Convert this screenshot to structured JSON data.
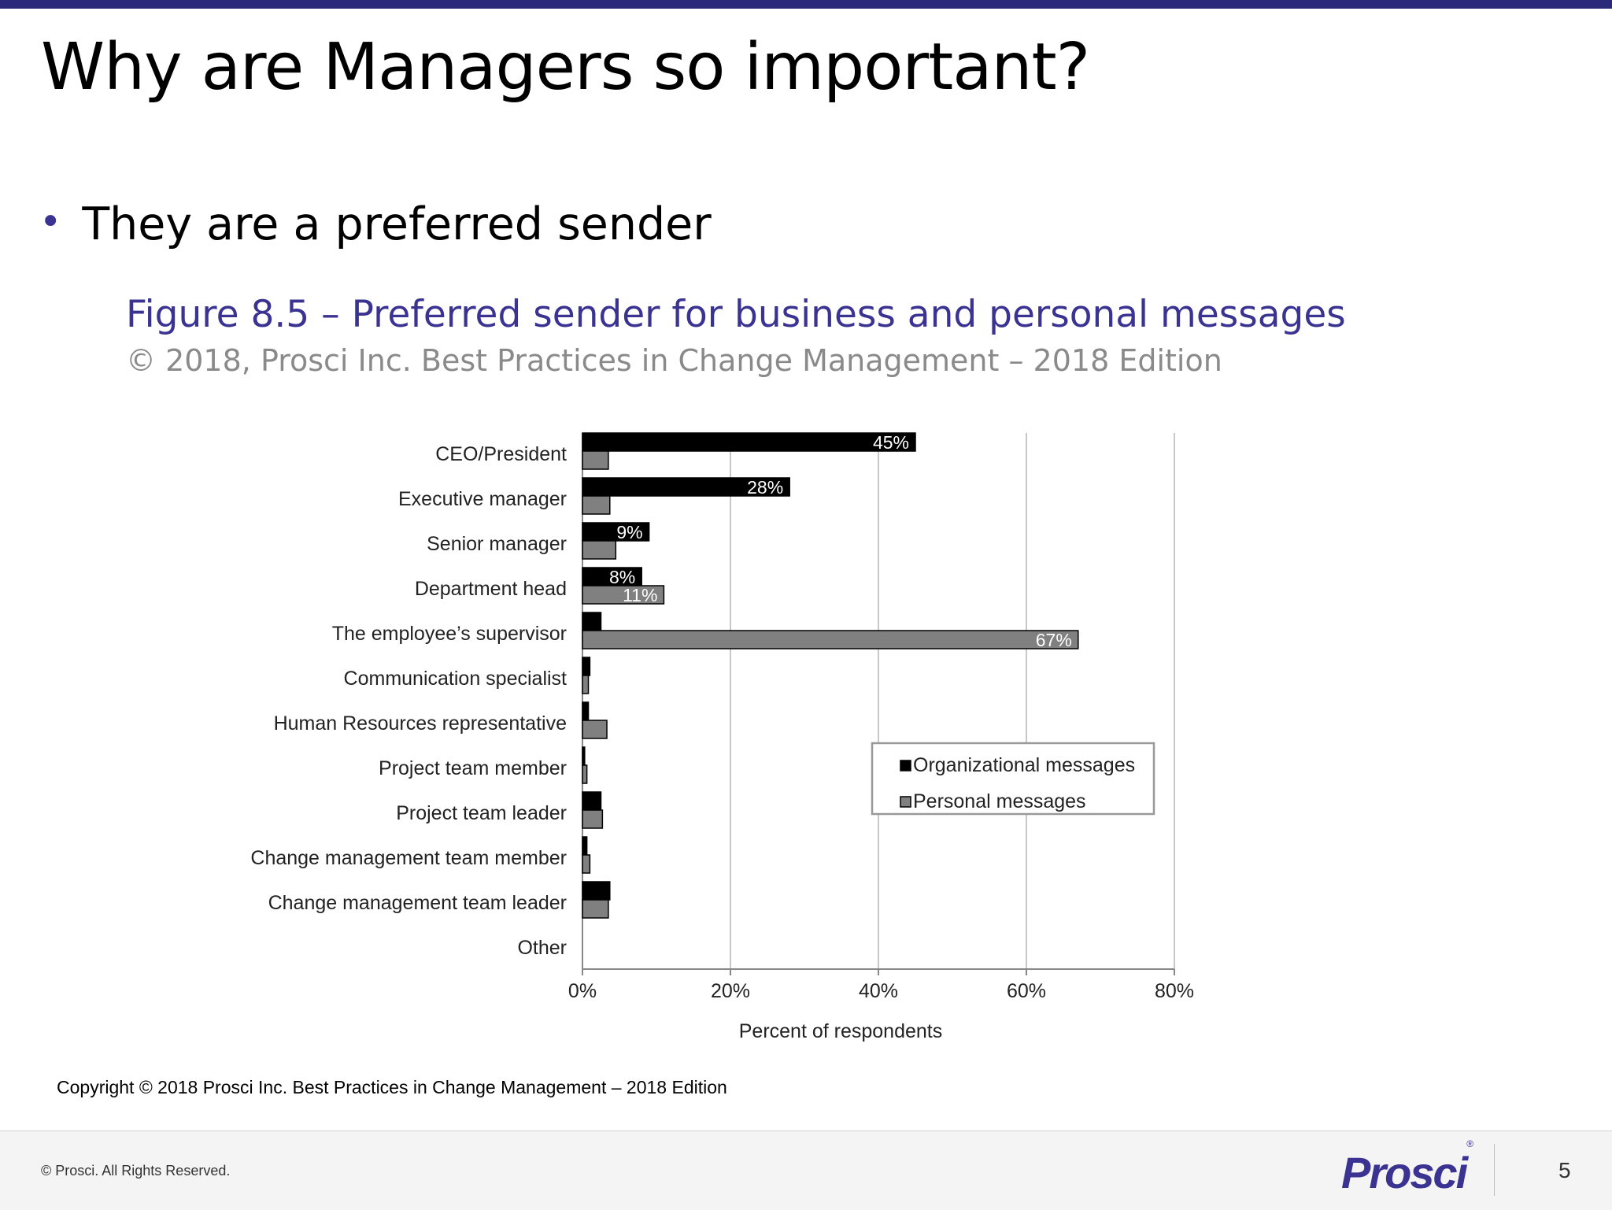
{
  "slide": {
    "title": "Why are Managers so important?",
    "bullet": "They are a preferred sender"
  },
  "figure": {
    "title": "Figure 8.5 – Preferred sender for business and personal messages",
    "subtitle": "© 2018, Prosci Inc. Best Practices in Change Management – 2018 Edition"
  },
  "chart_data": {
    "type": "bar",
    "orientation": "horizontal",
    "categories": [
      "CEO/President",
      "Executive manager",
      "Senior manager",
      "Department head",
      "The employee’s supervisor",
      "Communication specialist",
      "Human Resources representative",
      "Project team member",
      "Project team leader",
      "Change management team member",
      "Change management team leader",
      "Other"
    ],
    "series": [
      {
        "name": "Organizational messages",
        "color": "#000000",
        "values": [
          45,
          28,
          9,
          8,
          2.5,
          1,
          0.8,
          0.3,
          2.5,
          0.6,
          3.7,
          0
        ],
        "labels": [
          "45%",
          "28%",
          "9%",
          "8%",
          "",
          "",
          "",
          "",
          "",
          "",
          "",
          ""
        ]
      },
      {
        "name": "Personal messages",
        "color": "#808080",
        "values": [
          3.5,
          3.7,
          4.5,
          11,
          67,
          0.8,
          3.3,
          0.6,
          2.7,
          1,
          3.5,
          0
        ],
        "labels": [
          "",
          "",
          "",
          "11%",
          "67%",
          "",
          "",
          "",
          "",
          "",
          "",
          ""
        ]
      }
    ],
    "xlabel": "Percent of respondents",
    "xlim": [
      0,
      80
    ],
    "xticks": [
      "0%",
      "20%",
      "40%",
      "60%",
      "80%"
    ],
    "grid": "vertical",
    "legend": "lower-right"
  },
  "copyright_note": "Copyright © 2018 Prosci Inc. Best Practices in Change Management – 2018 Edition",
  "footer": {
    "rights": "© Prosci. All Rights Reserved.",
    "logo": "Prosci",
    "logo_mark": "®",
    "page_number": "5"
  }
}
